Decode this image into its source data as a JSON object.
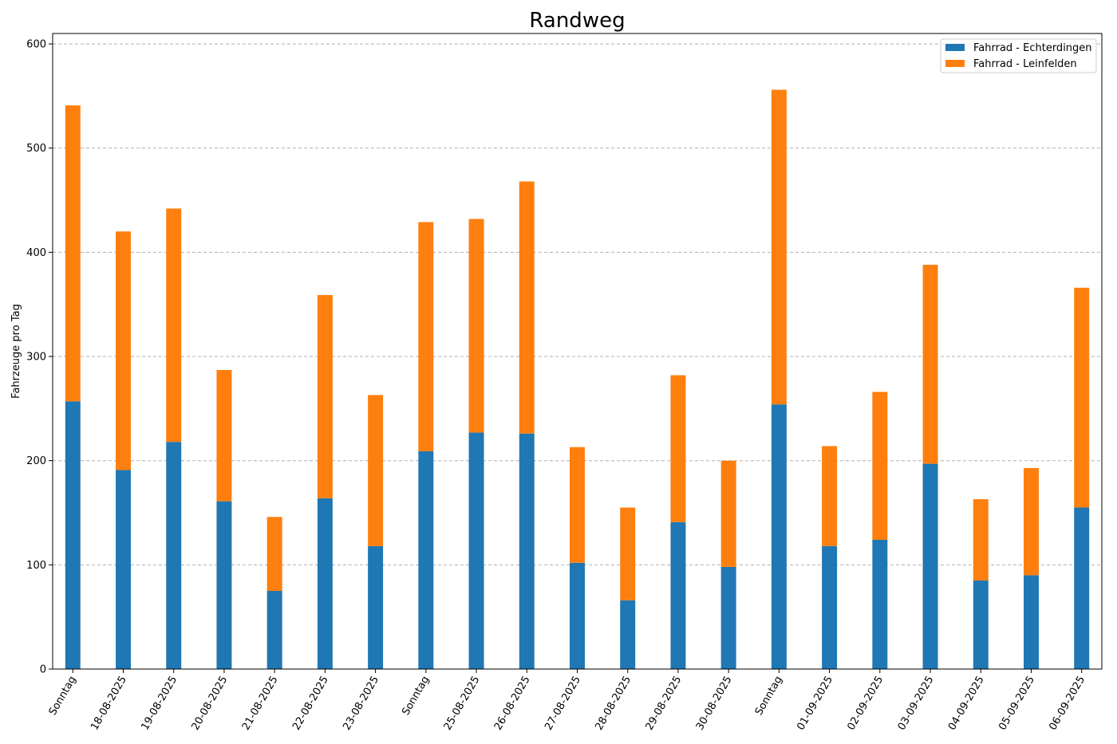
{
  "chart_data": {
    "type": "bar",
    "stacked": true,
    "title": "Randweg",
    "xlabel": "",
    "ylabel": "Fahrzeuge pro Tag",
    "ylim": [
      0,
      610
    ],
    "yticks": [
      0,
      100,
      200,
      300,
      400,
      500,
      600
    ],
    "grid": "y-dashed",
    "legend_position": "top-right",
    "categories": [
      "Sonntag",
      "18-08-2025",
      "19-08-2025",
      "20-08-2025",
      "21-08-2025",
      "22-08-2025",
      "23-08-2025",
      "Sonntag",
      "25-08-2025",
      "26-08-2025",
      "27-08-2025",
      "28-08-2025",
      "29-08-2025",
      "30-08-2025",
      "Sonntag",
      "01-09-2025",
      "02-09-2025",
      "03-09-2025",
      "04-09-2025",
      "05-09-2025",
      "06-09-2025"
    ],
    "series": [
      {
        "name": "Fahrrad - Echterdingen",
        "color": "#1f77b4",
        "values": [
          257,
          191,
          218,
          161,
          75,
          164,
          118,
          209,
          227,
          226,
          102,
          66,
          141,
          98,
          254,
          118,
          124,
          197,
          85,
          90,
          155
        ]
      },
      {
        "name": "Fahrrad - Leinfelden",
        "color": "#ff7f0e",
        "values": [
          284,
          229,
          224,
          126,
          71,
          195,
          145,
          220,
          205,
          242,
          111,
          89,
          141,
          102,
          302,
          96,
          142,
          191,
          78,
          103,
          211
        ]
      }
    ]
  }
}
